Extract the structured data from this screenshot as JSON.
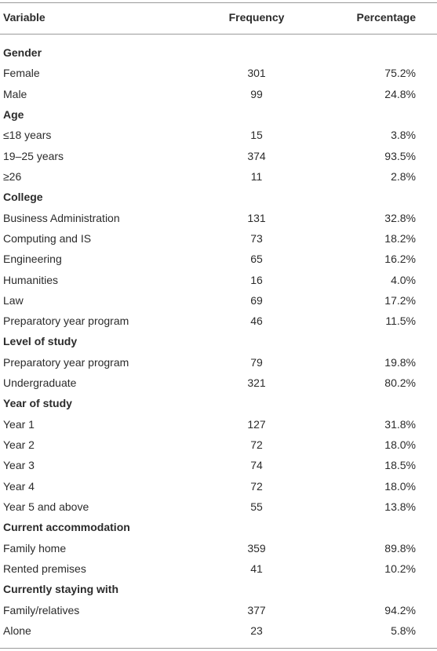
{
  "table": {
    "header": [
      "Variable",
      "Frequency",
      "Percentage"
    ],
    "rows": [
      [
        "Gender"
      ],
      [
        "Female",
        "301",
        "75.2%"
      ],
      [
        "Male",
        "99",
        "24.8%"
      ],
      [
        "Age"
      ],
      [
        "≤18 years",
        "15",
        "3.8%"
      ],
      [
        "19–25 years",
        "374",
        "93.5%"
      ],
      [
        "≥26",
        "11",
        "2.8%"
      ],
      [
        "College"
      ],
      [
        "Business Administration",
        "131",
        "32.8%"
      ],
      [
        "Computing and IS",
        "73",
        "18.2%"
      ],
      [
        "Engineering",
        "65",
        "16.2%"
      ],
      [
        "Humanities",
        "16",
        "4.0%"
      ],
      [
        "Law",
        "69",
        "17.2%"
      ],
      [
        "Preparatory year program",
        "46",
        "11.5%"
      ],
      [
        "Level of study"
      ],
      [
        "Preparatory year program",
        "79",
        "19.8%"
      ],
      [
        "Undergraduate",
        "321",
        "80.2%"
      ],
      [
        "Year of study"
      ],
      [
        "Year 1",
        "127",
        "31.8%"
      ],
      [
        "Year 2",
        "72",
        "18.0%"
      ],
      [
        "Year 3",
        "74",
        "18.5%"
      ],
      [
        "Year 4",
        "72",
        "18.0%"
      ],
      [
        "Year 5 and above",
        "55",
        "13.8%"
      ],
      [
        "Current accommodation"
      ],
      [
        "Family home",
        "359",
        "89.8%"
      ],
      [
        "Rented premises",
        "41",
        "10.2%"
      ],
      [
        "Currently staying with"
      ],
      [
        "Family/relatives",
        "377",
        "94.2%"
      ],
      [
        "Alone",
        "23",
        "5.8%"
      ]
    ]
  }
}
